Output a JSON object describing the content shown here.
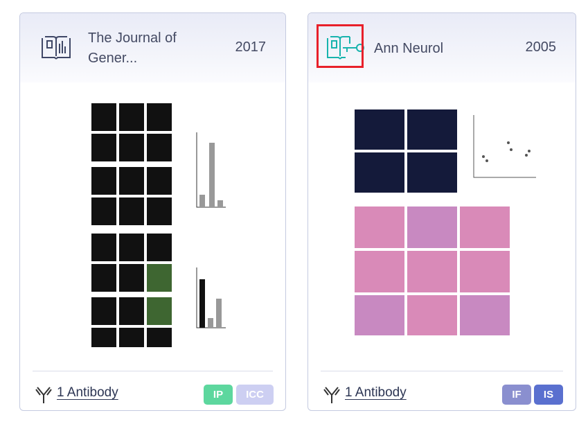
{
  "cards": [
    {
      "journal": "The Journal of Gener...",
      "year": "2017",
      "antibody_link": "1 Antibody",
      "tags": [
        "IP",
        "ICC"
      ]
    },
    {
      "journal": "Ann Neurol",
      "year": "2005",
      "antibody_link": "1 Antibody",
      "tags": [
        "IF",
        "IS"
      ]
    }
  ]
}
